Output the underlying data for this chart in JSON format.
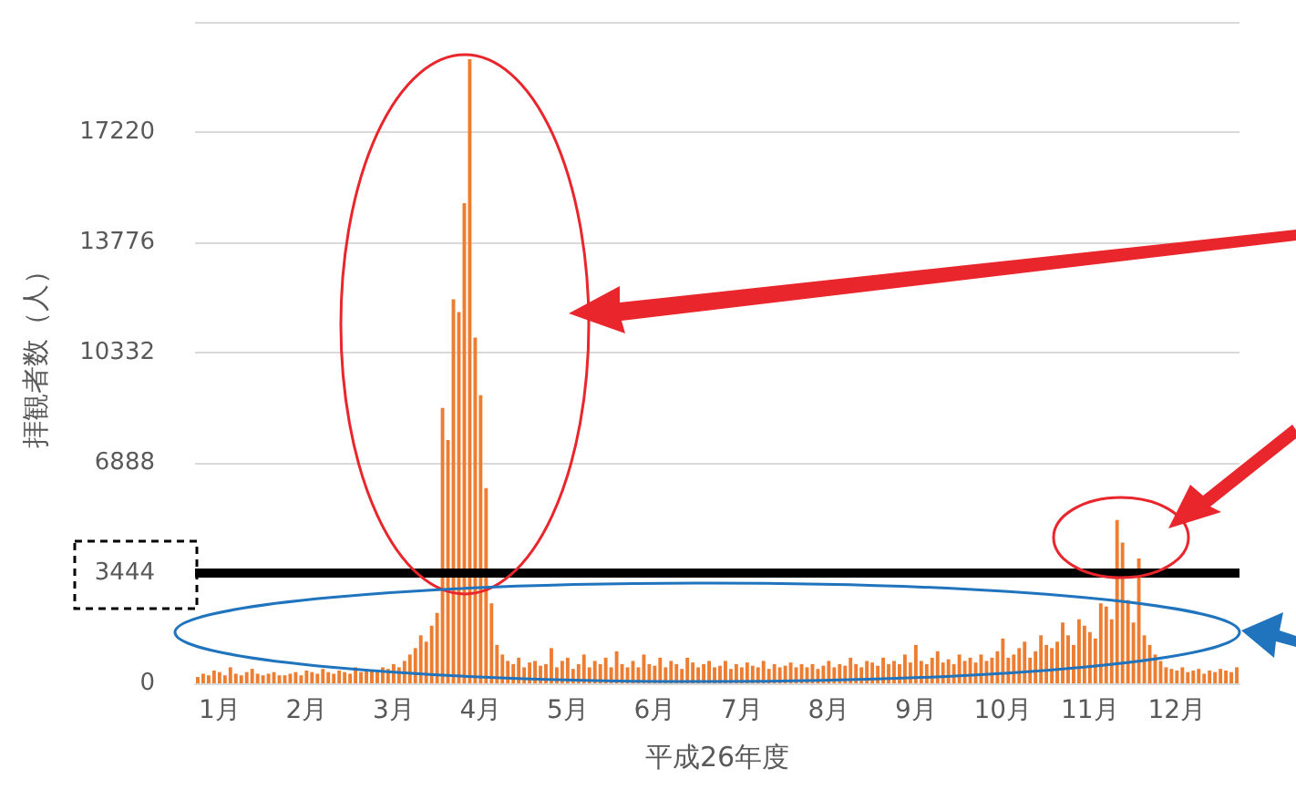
{
  "chart_data": {
    "type": "bar",
    "ylabel": "拝観者数（人）",
    "xlabel": "平成26年度",
    "categories": [
      null,
      null,
      null,
      null,
      "1月",
      null,
      null,
      null,
      null,
      null,
      null,
      null,
      null,
      null,
      null,
      null,
      null,
      null,
      null,
      null,
      "2月",
      null,
      null,
      null,
      null,
      null,
      null,
      null,
      null,
      null,
      null,
      null,
      null,
      null,
      null,
      null,
      "3月",
      null,
      null,
      null,
      null,
      null,
      null,
      null,
      null,
      null,
      null,
      null,
      null,
      null,
      null,
      null,
      "4月",
      null,
      null,
      null,
      null,
      null,
      null,
      null,
      null,
      null,
      null,
      null,
      null,
      null,
      null,
      null,
      "5月",
      null,
      null,
      null,
      null,
      null,
      null,
      null,
      null,
      null,
      null,
      null,
      null,
      null,
      null,
      null,
      "6月",
      null,
      null,
      null,
      null,
      null,
      null,
      null,
      null,
      null,
      null,
      null,
      null,
      null,
      null,
      null,
      "7月",
      null,
      null,
      null,
      null,
      null,
      null,
      null,
      null,
      null,
      null,
      null,
      null,
      null,
      null,
      null,
      "8月",
      null,
      null,
      null,
      null,
      null,
      null,
      null,
      null,
      null,
      null,
      null,
      null,
      null,
      null,
      null,
      "9月",
      null,
      null,
      null,
      null,
      null,
      null,
      null,
      null,
      null,
      null,
      null,
      null,
      null,
      null,
      null,
      "10月",
      null,
      null,
      null,
      null,
      null,
      null,
      null,
      null,
      null,
      null,
      null,
      null,
      null,
      null,
      null,
      "11月",
      null,
      null,
      null,
      null,
      null,
      null,
      null,
      null,
      null,
      null,
      null,
      null,
      null,
      null,
      null,
      "12月",
      null,
      null,
      null,
      null,
      null,
      null,
      null,
      null,
      null,
      null,
      null
    ],
    "values": [
      200,
      300,
      250,
      400,
      350,
      250,
      500,
      300,
      250,
      350,
      450,
      300,
      250,
      300,
      350,
      250,
      250,
      300,
      350,
      250,
      400,
      350,
      300,
      450,
      350,
      300,
      400,
      350,
      300,
      500,
      350,
      400,
      400,
      350,
      500,
      450,
      600,
      500,
      700,
      900,
      1100,
      1500,
      1300,
      1800,
      2200,
      8600,
      7600,
      12000,
      11600,
      15000,
      19500,
      10800,
      9000,
      6100,
      2500,
      1200,
      900,
      700,
      600,
      800,
      500,
      650,
      700,
      550,
      600,
      1100,
      500,
      700,
      800,
      450,
      600,
      900,
      500,
      700,
      600,
      800,
      500,
      1000,
      600,
      500,
      700,
      500,
      900,
      600,
      550,
      800,
      500,
      700,
      600,
      450,
      800,
      650,
      500,
      600,
      700,
      500,
      550,
      700,
      450,
      600,
      500,
      650,
      550,
      500,
      700,
      450,
      600,
      500,
      550,
      650,
      500,
      600,
      500,
      600,
      450,
      550,
      700,
      500,
      600,
      550,
      800,
      600,
      500,
      700,
      650,
      550,
      800,
      600,
      700,
      600,
      900,
      650,
      1200,
      700,
      600,
      800,
      1000,
      650,
      750,
      600,
      900,
      700,
      800,
      650,
      900,
      700,
      800,
      1000,
      1400,
      800,
      900,
      1100,
      1300,
      800,
      1000,
      1500,
      1200,
      1100,
      1300,
      1900,
      1500,
      1200,
      2000,
      1800,
      1600,
      1400,
      2500,
      2400,
      2000,
      5100,
      4400,
      2600,
      1900,
      3900,
      1500,
      1200,
      900,
      700,
      500,
      450,
      400,
      500,
      350,
      400,
      450,
      300,
      400,
      350,
      450,
      400,
      350,
      500
    ],
    "color": "#ed7d31",
    "ylim": [
      0,
      20664
    ],
    "yticks": [
      0,
      3444,
      6888,
      10332,
      13776,
      17220,
      {
        "value": 20664,
        "label": null
      }
    ],
    "grid": "y",
    "ref_lines": [
      {
        "axis": "y",
        "value": 3444,
        "color": "#000000"
      }
    ]
  }
}
